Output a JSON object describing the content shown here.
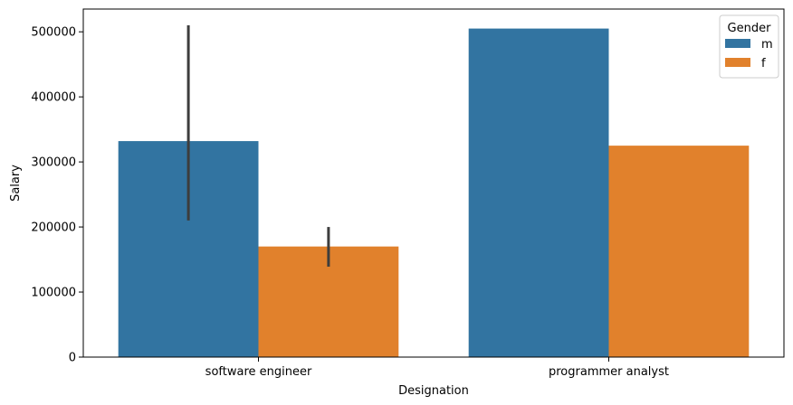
{
  "chart_data": {
    "type": "bar",
    "categories": [
      "software engineer",
      "programmer analyst"
    ],
    "series": [
      {
        "name": "m",
        "values": [
          332000,
          505000
        ],
        "error_low": [
          210000,
          null
        ],
        "error_high": [
          510000,
          null
        ],
        "color": "#3274a1"
      },
      {
        "name": "f",
        "values": [
          170000,
          325000
        ],
        "error_low": [
          139000,
          null
        ],
        "error_high": [
          200000,
          null
        ],
        "color": "#e1812c"
      }
    ],
    "xlabel": "Designation",
    "ylabel": "Salary",
    "ylim": [
      0,
      535000
    ],
    "yticks": [
      0,
      100000,
      200000,
      300000,
      400000,
      500000
    ],
    "ytick_labels": [
      "0",
      "100000",
      "200000",
      "300000",
      "400000",
      "500000"
    ],
    "grid": false,
    "legend": {
      "title": "Gender",
      "placement": "top-right"
    },
    "error_bar_color": "#3d3d3d"
  }
}
